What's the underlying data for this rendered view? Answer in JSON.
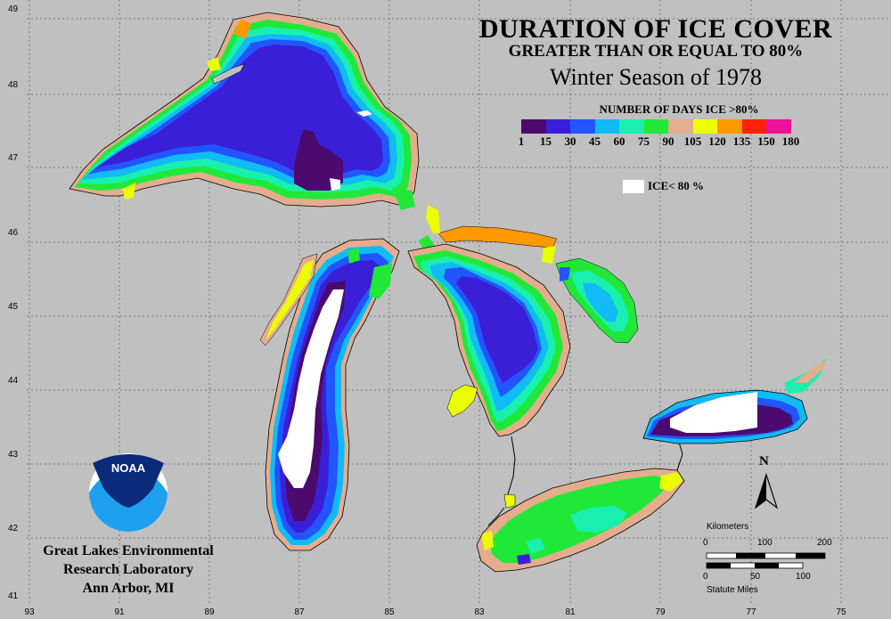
{
  "title": "DURATION OF ICE COVER",
  "subtitle": "GREATER THAN OR EQUAL TO 80%",
  "season": "Winter Season of 1978",
  "legend": {
    "title": "NUMBER OF DAYS ICE >80%",
    "colors": [
      "#4b0a6e",
      "#3a1fd6",
      "#2255ff",
      "#11bbf5",
      "#19f0b0",
      "#21e838",
      "#e3ad8e",
      "#eaff00",
      "#ff9900",
      "#ff2200",
      "#ee1199"
    ],
    "ticks": [
      "1",
      "15",
      "30",
      "45",
      "60",
      "75",
      "90",
      "105",
      "120",
      "135",
      "150",
      "180"
    ],
    "ice_label": "ICE< 80 %"
  },
  "latitudes": [
    "49",
    "48",
    "47",
    "46",
    "45",
    "44",
    "43",
    "42",
    "41"
  ],
  "longitudes": [
    "93",
    "91",
    "89",
    "87",
    "85",
    "83",
    "81",
    "79",
    "77",
    "75"
  ],
  "lakes": [
    "Superior",
    "Michigan",
    "Huron",
    "Erie",
    "Ontario"
  ],
  "north_label": "N",
  "scale": {
    "km_label": "Kilometers",
    "km_ticks": [
      "0",
      "100",
      "200"
    ],
    "mi_ticks": [
      "0",
      "50",
      "100"
    ],
    "mi_label": "Statute Miles"
  },
  "logo_text": "NOAA",
  "org": {
    "line1": "Great Lakes Environmental",
    "line2": "Research Laboratory",
    "line3": "Ann Arbor, MI"
  }
}
